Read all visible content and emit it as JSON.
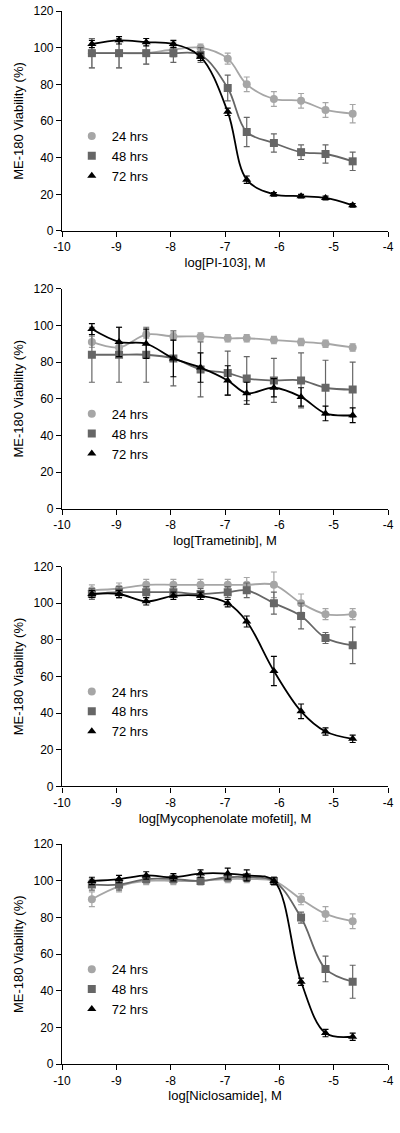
{
  "chart_data": [
    {
      "type": "scatter",
      "x_label": "log[PI-103], M",
      "y_label": "ME-180 Viability (%)",
      "x": [
        -9.45,
        -8.95,
        -8.45,
        -7.95,
        -7.45,
        -6.95,
        -6.6,
        -6.1,
        -5.6,
        -5.15,
        -4.65
      ],
      "xlim": [
        -10,
        -4
      ],
      "xticks": [
        -10,
        -9,
        -8,
        -7,
        -6,
        -5,
        -4
      ],
      "ylim": [
        0,
        120
      ],
      "yticks": [
        0,
        20,
        40,
        60,
        80,
        100,
        120
      ],
      "grid": false,
      "legend": "left",
      "series": [
        {
          "name": "24 hrs",
          "color": "#a6a6a6",
          "marker": "circle",
          "line_style": "solid",
          "values": [
            97,
            97,
            97,
            99,
            100,
            94,
            80,
            72,
            71,
            66,
            64
          ],
          "errors": [
            8,
            8,
            6,
            4,
            2,
            3,
            4,
            4,
            4,
            4,
            5
          ]
        },
        {
          "name": "48 hrs",
          "color": "#666666",
          "marker": "square",
          "line_style": "solid",
          "values": [
            97,
            97,
            97,
            97,
            96,
            78,
            54,
            48,
            43,
            42,
            38
          ],
          "errors": [
            8,
            8,
            6,
            5,
            4,
            7,
            8,
            5,
            4,
            5,
            5
          ]
        },
        {
          "name": "72 hrs",
          "color": "#000000",
          "marker": "triangle-up",
          "line_style": "solid",
          "values": [
            102,
            104,
            103,
            102,
            95,
            65,
            28,
            20,
            19,
            18,
            14
          ],
          "errors": [
            2,
            2,
            2,
            2,
            2,
            2,
            2,
            1,
            1,
            1,
            1
          ]
        }
      ]
    },
    {
      "type": "scatter",
      "x_label": "log[Trametinib], M",
      "y_label": "ME-180 Viability (%)",
      "x": [
        -9.45,
        -8.95,
        -8.45,
        -7.95,
        -7.45,
        -6.95,
        -6.6,
        -6.1,
        -5.6,
        -5.15,
        -4.65
      ],
      "xlim": [
        -10,
        -4
      ],
      "xticks": [
        -10,
        -9,
        -8,
        -7,
        -6,
        -5,
        -4
      ],
      "ylim": [
        0,
        120
      ],
      "yticks": [
        0,
        20,
        40,
        60,
        80,
        100,
        120
      ],
      "grid": false,
      "legend": "left",
      "series": [
        {
          "name": "24 hrs",
          "color": "#a6a6a6",
          "marker": "circle",
          "line_style": "solid",
          "values": [
            91,
            88,
            95,
            94,
            94,
            93,
            93,
            92,
            91,
            90,
            88
          ],
          "errors": [
            3,
            3,
            2,
            2,
            2,
            2,
            2,
            2,
            2,
            2,
            2
          ]
        },
        {
          "name": "48 hrs",
          "color": "#666666",
          "marker": "square",
          "line_style": "solid",
          "values": [
            84,
            84,
            84,
            82,
            76,
            74,
            71,
            70,
            70,
            66,
            65
          ],
          "errors": [
            15,
            15,
            15,
            15,
            15,
            12,
            12,
            12,
            15,
            15,
            15
          ]
        },
        {
          "name": "72 hrs",
          "color": "#000000",
          "marker": "triangle-up",
          "line_style": "solid",
          "values": [
            98,
            91,
            90,
            82,
            77,
            70,
            63,
            66,
            61,
            52,
            51
          ],
          "errors": [
            3,
            8,
            8,
            10,
            8,
            8,
            6,
            5,
            5,
            4,
            4
          ]
        }
      ]
    },
    {
      "type": "scatter",
      "x_label": "log[Mycophenolate mofetil], M",
      "y_label": "ME-180 Viability (%)",
      "x": [
        -9.45,
        -8.95,
        -8.45,
        -7.95,
        -7.45,
        -6.95,
        -6.6,
        -6.1,
        -5.6,
        -5.15,
        -4.65
      ],
      "xlim": [
        -10,
        -4
      ],
      "xticks": [
        -10,
        -9,
        -8,
        -7,
        -6,
        -5,
        -4
      ],
      "ylim": [
        0,
        120
      ],
      "yticks": [
        0,
        20,
        40,
        60,
        80,
        100,
        120
      ],
      "grid": false,
      "legend": "left",
      "series": [
        {
          "name": "24 hrs",
          "color": "#a6a6a6",
          "marker": "circle",
          "line_style": "solid",
          "values": [
            107,
            108,
            110,
            110,
            110,
            110,
            110,
            110,
            100,
            94,
            94
          ],
          "errors": [
            3,
            3,
            3,
            3,
            3,
            3,
            4,
            7,
            5,
            3,
            3
          ]
        },
        {
          "name": "48 hrs",
          "color": "#666666",
          "marker": "square",
          "line_style": "solid",
          "values": [
            105,
            106,
            106,
            106,
            105,
            106,
            107,
            100,
            93,
            81,
            77
          ],
          "errors": [
            3,
            3,
            3,
            3,
            3,
            3,
            4,
            6,
            7,
            3,
            10
          ]
        },
        {
          "name": "72 hrs",
          "color": "#000000",
          "marker": "triangle-up",
          "line_style": "solid",
          "values": [
            105,
            105,
            101,
            104,
            104,
            100,
            90,
            63,
            41,
            30,
            26
          ],
          "errors": [
            2,
            2,
            2,
            2,
            2,
            2,
            3,
            8,
            4,
            2,
            2
          ]
        }
      ]
    },
    {
      "type": "scatter",
      "x_label": "log[Niclosamide], M",
      "y_label": "ME-180 Viability (%)",
      "x": [
        -9.45,
        -8.95,
        -8.45,
        -7.95,
        -7.45,
        -6.95,
        -6.6,
        -6.1,
        -5.6,
        -5.15,
        -4.65
      ],
      "xlim": [
        -10,
        -4
      ],
      "xticks": [
        -10,
        -9,
        -8,
        -7,
        -6,
        -5,
        -4
      ],
      "ylim": [
        0,
        120
      ],
      "yticks": [
        0,
        20,
        40,
        60,
        80,
        100,
        120
      ],
      "grid": false,
      "legend": "left",
      "series": [
        {
          "name": "24 hrs",
          "color": "#a6a6a6",
          "marker": "circle",
          "line_style": "solid",
          "values": [
            90,
            97,
            100,
            100,
            100,
            101,
            101,
            100,
            90,
            82,
            78
          ],
          "errors": [
            4,
            3,
            2,
            2,
            2,
            2,
            2,
            2,
            3,
            4,
            4
          ]
        },
        {
          "name": "48 hrs",
          "color": "#666666",
          "marker": "square",
          "line_style": "solid",
          "values": [
            98,
            98,
            101,
            101,
            100,
            102,
            102,
            100,
            80,
            52,
            45
          ],
          "errors": [
            3,
            3,
            2,
            2,
            2,
            2,
            2,
            2,
            3,
            7,
            9
          ]
        },
        {
          "name": "72 hrs",
          "color": "#000000",
          "marker": "triangle-up",
          "line_style": "solid",
          "values": [
            100,
            101,
            103,
            102,
            104,
            104,
            103,
            100,
            45,
            17,
            15
          ],
          "errors": [
            2,
            2,
            2,
            2,
            2,
            3,
            3,
            2,
            2,
            2,
            2
          ]
        }
      ]
    }
  ]
}
